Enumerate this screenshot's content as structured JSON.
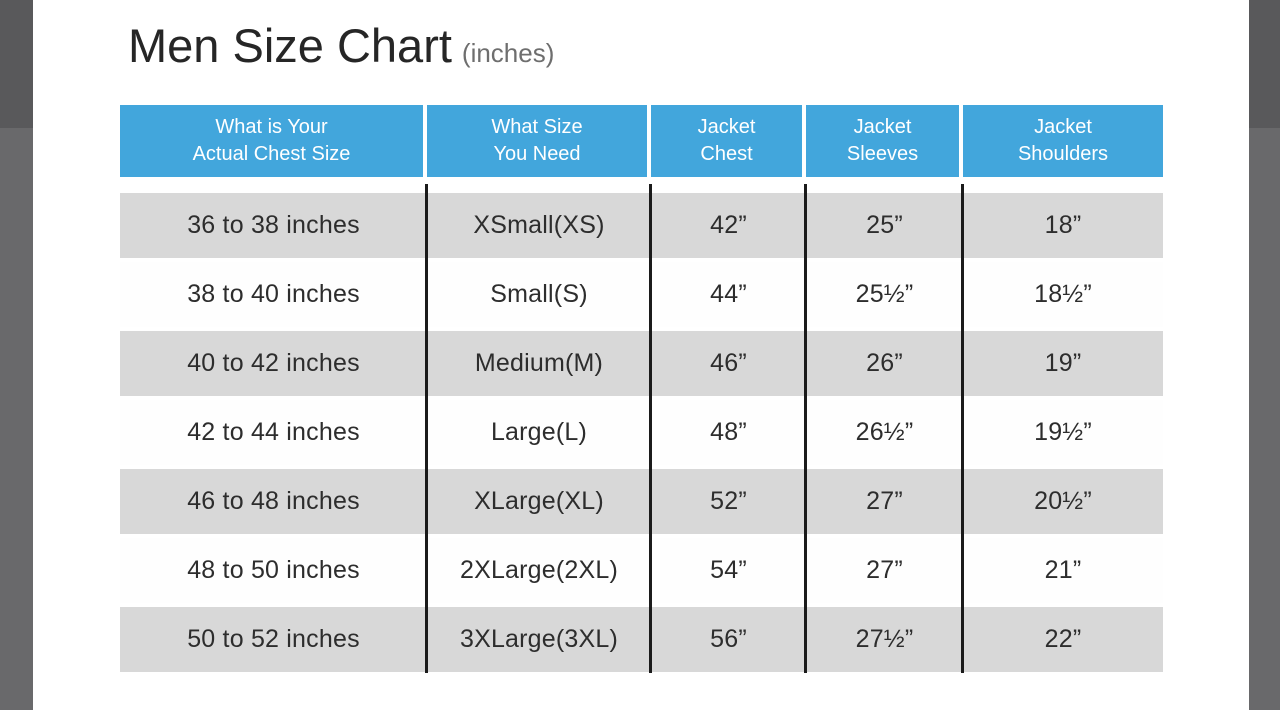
{
  "title": {
    "main": "Men Size Chart",
    "suffix": "(inches)"
  },
  "colors": {
    "header_blue": "#42a6dc",
    "header_text": "#ffffff",
    "row_gray": "#d8d8d8",
    "row_white": "#fefefe",
    "body_text": "#2d2d2d",
    "column_divider": "#1b1b1b",
    "title_text": "#262626",
    "subtitle_text": "#6e6e6e",
    "side_bar_gray_top": "#59595b",
    "side_bar_gray_bottom": "#69696b",
    "page_background": "#ffffff"
  },
  "chart_data": {
    "type": "table",
    "title": "Men Size Chart",
    "title_suffix": "(inches)",
    "columns": [
      {
        "line1": "What is Your",
        "line2": "Actual Chest Size"
      },
      {
        "line1": "What Size",
        "line2": "You Need"
      },
      {
        "line1": "Jacket",
        "line2": "Chest"
      },
      {
        "line1": "Jacket",
        "line2": "Sleeves"
      },
      {
        "line1": "Jacket",
        "line2": "Shoulders"
      }
    ],
    "rows": [
      [
        "36 to 38 inches",
        "XSmall(XS)",
        "42”",
        "25”",
        "18”"
      ],
      [
        "38 to 40 inches",
        "Small(S)",
        "44”",
        "25½”",
        "18½”"
      ],
      [
        "40 to 42 inches",
        "Medium(M)",
        "46”",
        "26”",
        "19”"
      ],
      [
        "42 to 44 inches",
        "Large(L)",
        "48”",
        "26½”",
        "19½”"
      ],
      [
        "46 to 48 inches",
        "XLarge(XL)",
        "52”",
        "27”",
        "20½”"
      ],
      [
        "48 to 50 inches",
        "2XLarge(2XL)",
        "54”",
        "27”",
        "21”"
      ],
      [
        "50 to 52 inches",
        "3XLarge(3XL)",
        "56”",
        "27½”",
        "22”"
      ]
    ]
  }
}
